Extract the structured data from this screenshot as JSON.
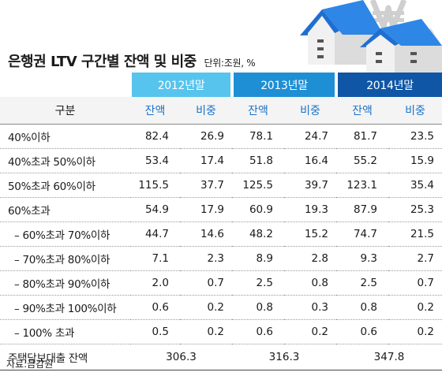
{
  "title": "은행권 LTV 구간별 잔액 및 비중",
  "unit": "단위:조원, %",
  "header": {
    "gubun": "구분",
    "years": [
      "2012년말",
      "2013년말",
      "2014년말"
    ],
    "balance": "잔액",
    "share": "비중"
  },
  "rows": [
    {
      "label": "40%이하",
      "v": [
        "82.4",
        "26.9",
        "78.1",
        "24.7",
        "81.7",
        "23.5"
      ]
    },
    {
      "label": "40%초과 50%이하",
      "v": [
        "53.4",
        "17.4",
        "51.8",
        "16.4",
        "55.2",
        "15.9"
      ]
    },
    {
      "label": "50%초과 60%이하",
      "v": [
        "115.5",
        "37.7",
        "125.5",
        "39.7",
        "123.1",
        "35.4"
      ]
    },
    {
      "label": "60%초과",
      "v": [
        "54.9",
        "17.9",
        "60.9",
        "19.3",
        "87.9",
        "25.3"
      ]
    },
    {
      "label": "– 60%초과 70%이하",
      "v": [
        "44.7",
        "14.6",
        "48.2",
        "15.2",
        "74.7",
        "21.5"
      ]
    },
    {
      "label": "– 70%초과 80%이하",
      "v": [
        "7.1",
        "2.3",
        "8.9",
        "2.8",
        "9.3",
        "2.7"
      ]
    },
    {
      "label": "– 80%초과 90%이하",
      "v": [
        "2.0",
        "0.7",
        "2.5",
        "0.8",
        "2.5",
        "0.7"
      ]
    },
    {
      "label": "– 90%초과 100%이하",
      "v": [
        "0.6",
        "0.2",
        "0.8",
        "0.3",
        "0.8",
        "0.2"
      ]
    },
    {
      "label": "– 100% 초과",
      "v": [
        "0.5",
        "0.2",
        "0.6",
        "0.2",
        "0.6",
        "0.2"
      ]
    }
  ],
  "total": {
    "label": "주택담보대출 잔액",
    "v": [
      "306.3",
      "316.3",
      "347.8"
    ]
  },
  "source": "자료:금감원",
  "colors": {
    "y2012": "#57c4ed",
    "y2013": "#1e8fd5",
    "y2014": "#0f56a6",
    "accent_text": "#1a73c9"
  },
  "icons": [
    "house-icon",
    "won-sign-icon"
  ]
}
